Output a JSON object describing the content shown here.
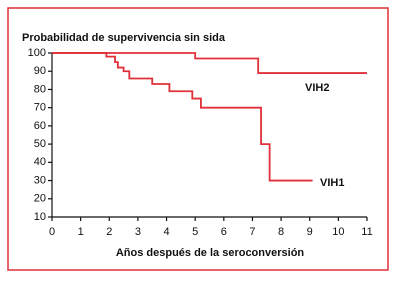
{
  "chart_data": {
    "type": "line",
    "title": "Probabilidad de supervivencia sin sida",
    "xlabel": "Años después de la seroconversión",
    "xlim": [
      0,
      11
    ],
    "ylim": [
      10,
      100
    ],
    "xticks": [
      0,
      1,
      2,
      3,
      4,
      5,
      6,
      7,
      8,
      9,
      10,
      11
    ],
    "yticks": [
      10,
      20,
      30,
      40,
      50,
      60,
      70,
      80,
      90,
      100
    ],
    "grid": false,
    "series": [
      {
        "name": "VIH2",
        "color": "#e0303a",
        "x": [
          0,
          5,
          5,
          7.2,
          7.2,
          11
        ],
        "values": [
          100,
          100,
          97,
          97,
          89,
          89
        ]
      },
      {
        "name": "VIH1",
        "color": "#e0303a",
        "x": [
          0,
          1.9,
          1.9,
          2.2,
          2.2,
          2.3,
          2.3,
          2.5,
          2.5,
          2.7,
          2.7,
          3.5,
          3.5,
          4.1,
          4.1,
          4.9,
          4.9,
          5.2,
          5.2,
          7.3,
          7.3,
          7.6,
          7.6,
          9.1
        ],
        "values": [
          100,
          100,
          98,
          98,
          95,
          95,
          92,
          92,
          90,
          90,
          86,
          86,
          83,
          83,
          79,
          79,
          75,
          75,
          70,
          70,
          50,
          50,
          30,
          30
        ]
      }
    ]
  }
}
